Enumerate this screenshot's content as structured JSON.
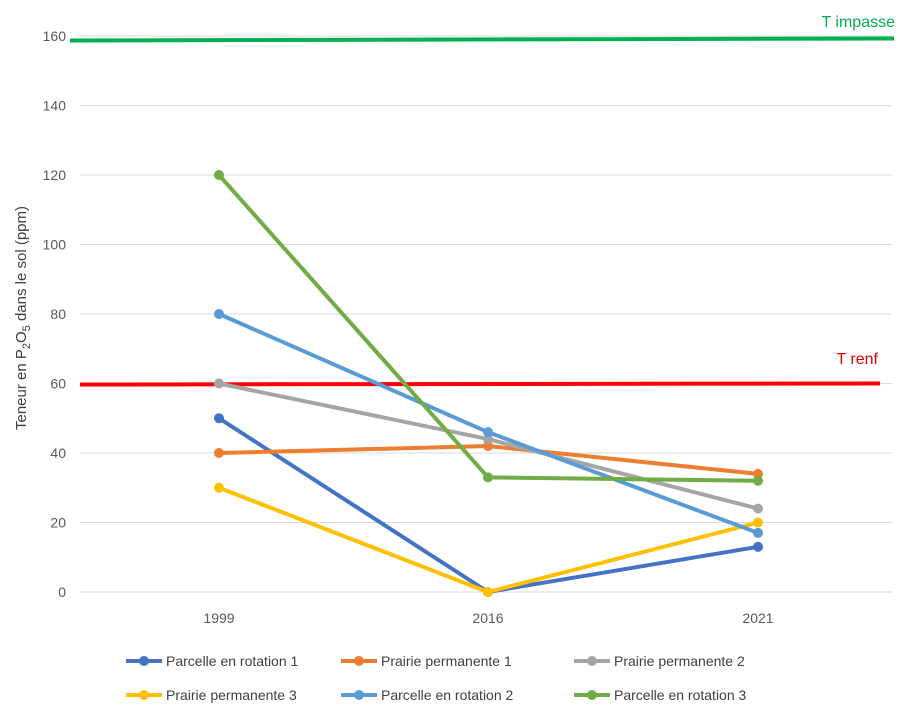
{
  "chart_data": {
    "type": "line",
    "title": "",
    "xlabel": "",
    "ylabel": "Teneur en P",
    "ylabel_sub1": "2",
    "ylabel_mid": "O",
    "ylabel_sub2": "5",
    "ylabel_end": " dans le sol (ppm)",
    "categories": [
      "1999",
      "2016",
      "2021"
    ],
    "ylim": [
      0,
      160
    ],
    "yticks": [
      0,
      20,
      40,
      60,
      80,
      100,
      120,
      140,
      160
    ],
    "grid": true,
    "legend_position": "bottom",
    "series": [
      {
        "name": "Parcelle en rotation 1",
        "color": "#4472c4",
        "values": [
          50,
          0,
          13
        ]
      },
      {
        "name": "Prairie permanente 1",
        "color": "#ed7d31",
        "values": [
          40,
          42,
          34
        ]
      },
      {
        "name": "Prairie permanente 2",
        "color": "#a5a5a5",
        "values": [
          60,
          44,
          24
        ]
      },
      {
        "name": "Prairie permanente 3",
        "color": "#ffc000",
        "values": [
          30,
          0,
          20
        ]
      },
      {
        "name": "Parcelle en rotation 2",
        "color": "#5b9bd5",
        "values": [
          80,
          46,
          17
        ]
      },
      {
        "name": "Parcelle en rotation 3",
        "color": "#70ad47",
        "values": [
          120,
          33,
          32
        ]
      }
    ],
    "reference_lines": [
      {
        "label": "T impasse",
        "value": 159,
        "color": "#00b050"
      },
      {
        "label": "T renf",
        "value": 60,
        "color": "#ff0000"
      }
    ]
  }
}
